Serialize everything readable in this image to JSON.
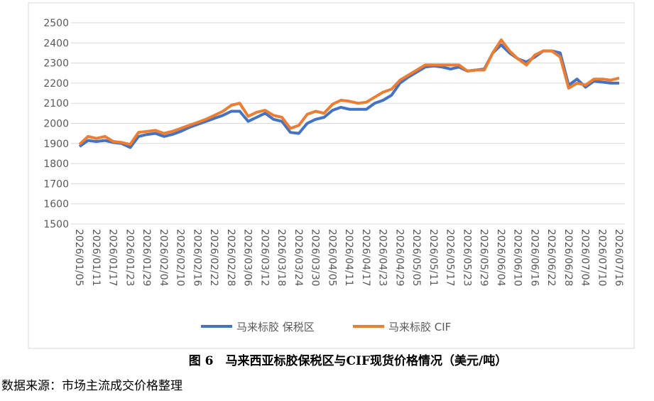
{
  "chart_data": {
    "type": "line",
    "title": "图 6　马来西亚标胶保税区与CIF现货价格情况（美元/吨）",
    "source": "数据来源：市场主流成交价格整理",
    "categories": [
      "2026/01/05",
      null,
      "2026/01/11",
      null,
      "2026/01/17",
      null,
      "2026/01/23",
      null,
      "2026/01/29",
      null,
      "2026/02/04",
      null,
      "2026/02/10",
      null,
      "2026/02/16",
      null,
      "2026/02/22",
      null,
      "2026/02/28",
      null,
      "2026/03/06",
      null,
      "2026/03/12",
      null,
      "2026/03/18",
      null,
      "2026/03/24",
      null,
      "2026/03/30",
      null,
      "2026/04/05",
      null,
      "2026/04/11",
      null,
      "2026/04/17",
      null,
      "2026/04/23",
      null,
      "2026/04/29",
      null,
      "2026/05/05",
      null,
      "2026/05/11",
      null,
      "2026/05/17",
      null,
      "2026/05/23",
      null,
      "2026/05/29",
      null,
      "2026/06/04",
      null,
      "2026/06/10",
      null,
      "2026/06/16",
      null,
      "2026/06/22",
      null,
      "2026/06/28",
      null,
      "2026/07/04",
      null,
      "2026/07/10",
      null,
      "2026/07/16"
    ],
    "series": [
      {
        "name": "马来标胶 保税区",
        "color": "#4472c4",
        "values": [
          1885,
          1915,
          1910,
          1915,
          1905,
          1900,
          1880,
          1935,
          1945,
          1950,
          1935,
          1945,
          1960,
          1980,
          1995,
          2010,
          2025,
          2040,
          2060,
          2060,
          2010,
          2030,
          2050,
          2020,
          2010,
          1955,
          1950,
          2000,
          2020,
          2030,
          2065,
          2080,
          2070,
          2070,
          2070,
          2100,
          2115,
          2140,
          2200,
          2230,
          2255,
          2280,
          2285,
          2280,
          2270,
          2280,
          2260,
          2265,
          2270,
          2350,
          2390,
          2350,
          2320,
          2305,
          2330,
          2360,
          2360,
          2350,
          2190,
          2220,
          2180,
          2210,
          2205,
          2200,
          2200
        ]
      },
      {
        "name": "马来标胶 CIF",
        "color": "#ed7d31",
        "values": [
          1895,
          1935,
          1925,
          1935,
          1910,
          1905,
          1895,
          1955,
          1960,
          1965,
          1950,
          1960,
          1975,
          1990,
          2005,
          2020,
          2040,
          2060,
          2090,
          2100,
          2035,
          2055,
          2065,
          2040,
          2030,
          1975,
          1990,
          2045,
          2060,
          2050,
          2095,
          2115,
          2110,
          2100,
          2105,
          2130,
          2155,
          2170,
          2215,
          2240,
          2265,
          2290,
          2290,
          2290,
          2290,
          2290,
          2260,
          2265,
          2265,
          2350,
          2415,
          2360,
          2320,
          2290,
          2340,
          2360,
          2360,
          2330,
          2175,
          2200,
          2190,
          2220,
          2220,
          2215,
          2225
        ]
      }
    ],
    "ylim": [
      1500,
      2500
    ],
    "yticks": [
      1500,
      1600,
      1700,
      1800,
      1900,
      2000,
      2100,
      2200,
      2300,
      2400,
      2500
    ],
    "grid": true,
    "legend": "bottom"
  }
}
